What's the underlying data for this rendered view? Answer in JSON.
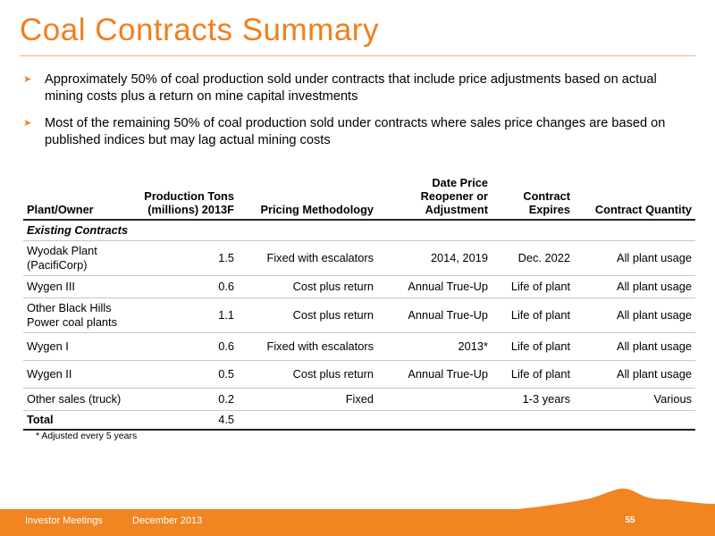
{
  "title": "Coal Contracts Summary",
  "bullets": [
    "Approximately 50% of coal production sold under contracts that include price adjustments based on actual mining costs plus a return on mine capital investments",
    "Most of the remaining 50% of coal production sold under contracts where sales price changes are based on published indices but may lag actual mining costs"
  ],
  "table": {
    "headers": {
      "plant": "Plant/Owner",
      "production": "Production Tons (millions) 2013F",
      "pricing": "Pricing Methodology",
      "reopener": "Date Price Reopener or Adjustment",
      "expires": "Contract Expires",
      "quantity": "Contract Quantity"
    },
    "section": "Existing Contracts",
    "rows": [
      {
        "plant": "Wyodak Plant (PacifiCorp)",
        "production": "1.5",
        "pricing": "Fixed with escalators",
        "reopener": "2014, 2019",
        "expires": "Dec. 2022",
        "quantity": "All plant usage"
      },
      {
        "plant": "Wygen III",
        "production": "0.6",
        "pricing": "Cost plus return",
        "reopener": "Annual True-Up",
        "expires": "Life of plant",
        "quantity": "All plant usage"
      },
      {
        "plant": "Other Black Hills Power coal plants",
        "production": "1.1",
        "pricing": "Cost plus return",
        "reopener": "Annual True-Up",
        "expires": "Life of plant",
        "quantity": "All plant usage"
      },
      {
        "plant": "Wygen I",
        "production": "0.6",
        "pricing": "Fixed with escalators",
        "reopener": "2013*",
        "expires": "Life of plant",
        "quantity": "All plant usage"
      },
      {
        "plant": "Wygen II",
        "production": "0.5",
        "pricing": "Cost plus return",
        "reopener": "Annual True-Up",
        "expires": "Life of plant",
        "quantity": "All plant usage"
      },
      {
        "plant": "Other sales (truck)",
        "production": "0.2",
        "pricing": "Fixed",
        "reopener": "",
        "expires": "1-3 years",
        "quantity": "Various"
      }
    ],
    "total": {
      "label": "Total",
      "production": "4.5"
    }
  },
  "footnote": "* Adjusted every 5 years",
  "footer": {
    "left": "Investor Meetings",
    "date": "December 2013",
    "page": "55"
  },
  "colors": {
    "accent": "#f07f1e",
    "footer_bar": "#f08522"
  }
}
